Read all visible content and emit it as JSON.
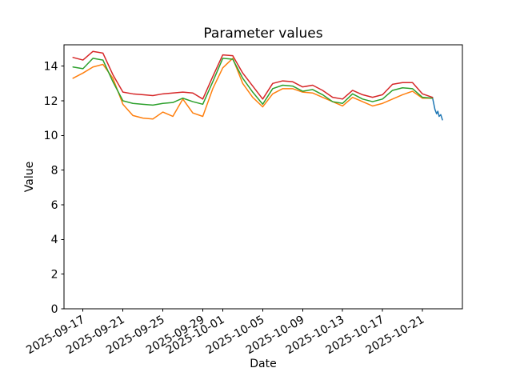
{
  "figure": {
    "background": "#ffffff"
  },
  "chart_data": {
    "type": "line",
    "title": "Parameter values",
    "xlabel": "Date",
    "ylabel": "Value",
    "grid": false,
    "legend": "none",
    "x_start_date": "2025-09-17",
    "xlim_days": [
      -1.9,
      38.0
    ],
    "ylim": [
      0,
      15.23
    ],
    "y_ticks": [
      0,
      2,
      4,
      6,
      8,
      10,
      12,
      14
    ],
    "x_ticks": [
      "2025-09-17",
      "2025-09-21",
      "2025-09-25",
      "2025-09-29",
      "2025-10-01",
      "2025-10-05",
      "2025-10-09",
      "2025-10-13",
      "2025-10-17",
      "2025-10-21"
    ],
    "x_tick_rotation_deg": 30,
    "dates": [
      "2025-09-16",
      "2025-09-17",
      "2025-09-18",
      "2025-09-19",
      "2025-09-20",
      "2025-09-21",
      "2025-09-22",
      "2025-09-23",
      "2025-09-24",
      "2025-09-25",
      "2025-09-26",
      "2025-09-27",
      "2025-09-28",
      "2025-09-29",
      "2025-09-30",
      "2025-10-01",
      "2025-10-02",
      "2025-10-03",
      "2025-10-04",
      "2025-10-05",
      "2025-10-06",
      "2025-10-07",
      "2025-10-08",
      "2025-10-09",
      "2025-10-10",
      "2025-10-11",
      "2025-10-12",
      "2025-10-13",
      "2025-10-14",
      "2025-10-15",
      "2025-10-16",
      "2025-10-17",
      "2025-10-18",
      "2025-10-19",
      "2025-10-20",
      "2025-10-21",
      "2025-10-22"
    ],
    "series": [
      {
        "name": "observed-blue",
        "color": "#1f77b4",
        "x": [
          "2025-10-22T00:00",
          "2025-10-22T06:00",
          "2025-10-22T10:00",
          "2025-10-22T13:00",
          "2025-10-22T16:00",
          "2025-10-22T20:00",
          "2025-10-23T00:00"
        ],
        "values": [
          12.2,
          11.5,
          11.25,
          11.4,
          11.1,
          11.2,
          10.9
        ]
      },
      {
        "name": "param-orange",
        "color": "#ff7f0e",
        "values": [
          13.3,
          13.6,
          13.95,
          14.1,
          13.3,
          11.8,
          11.15,
          11.0,
          10.95,
          11.35,
          11.1,
          12.1,
          11.3,
          11.1,
          12.7,
          13.9,
          14.45,
          13.0,
          12.2,
          11.65,
          12.4,
          12.7,
          12.7,
          12.5,
          12.45,
          12.2,
          11.95,
          11.7,
          12.2,
          11.95,
          11.7,
          11.85,
          12.1,
          12.35,
          12.55,
          12.15,
          12.15
        ]
      },
      {
        "name": "param-green",
        "color": "#2ca02c",
        "values": [
          13.95,
          13.85,
          14.45,
          14.35,
          13.1,
          12.0,
          11.85,
          11.8,
          11.75,
          11.85,
          11.9,
          12.15,
          11.95,
          11.8,
          13.1,
          14.45,
          14.4,
          13.3,
          12.5,
          11.8,
          12.7,
          12.9,
          12.85,
          12.55,
          12.65,
          12.35,
          11.95,
          11.85,
          12.4,
          12.1,
          11.95,
          12.1,
          12.6,
          12.75,
          12.7,
          12.2,
          12.15
        ]
      },
      {
        "name": "param-red",
        "color": "#d62728",
        "values": [
          14.5,
          14.35,
          14.85,
          14.75,
          13.5,
          12.5,
          12.4,
          12.35,
          12.3,
          12.4,
          12.45,
          12.5,
          12.45,
          12.1,
          13.4,
          14.65,
          14.6,
          13.6,
          12.85,
          12.1,
          13.0,
          13.15,
          13.1,
          12.8,
          12.9,
          12.6,
          12.2,
          12.1,
          12.6,
          12.35,
          12.2,
          12.35,
          12.95,
          13.05,
          13.05,
          12.4,
          12.2
        ]
      }
    ]
  }
}
